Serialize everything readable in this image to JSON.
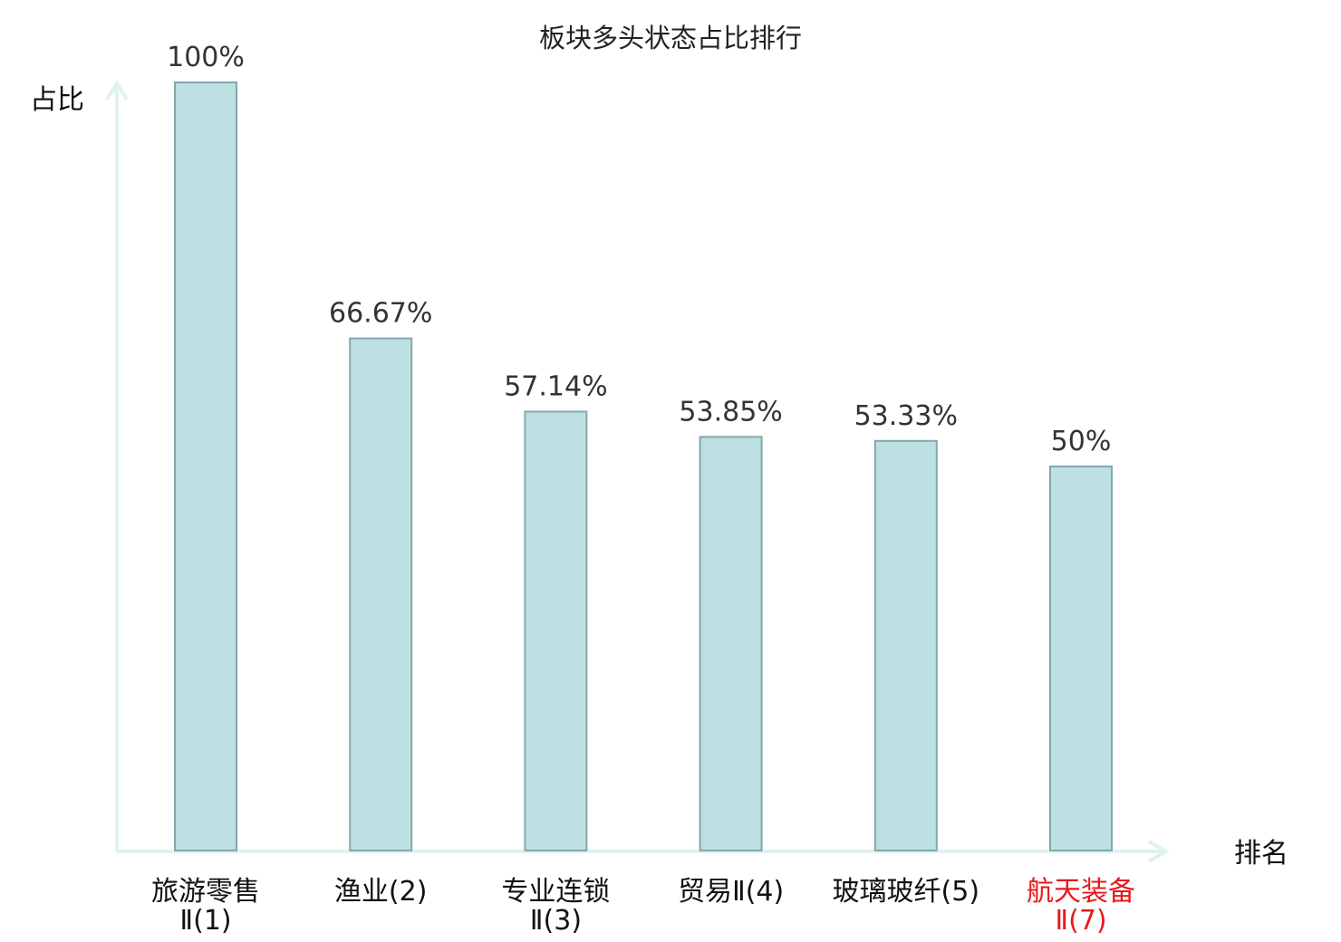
{
  "chart_data": {
    "type": "bar",
    "title": "板块多头状态占比排行",
    "ylabel": "占比",
    "xlabel": "排名",
    "categories": [
      [
        "旅游零售",
        "Ⅱ(1)"
      ],
      [
        "渔业(2)"
      ],
      [
        "专业连锁",
        "Ⅱ(3)"
      ],
      [
        "贸易Ⅱ(4)"
      ],
      [
        "玻璃玻纤(5)"
      ],
      [
        "航天装备",
        "Ⅱ(7)"
      ]
    ],
    "values": [
      100,
      66.67,
      57.14,
      53.85,
      53.33,
      50
    ],
    "value_labels": [
      "100%",
      "66.67%",
      "57.14%",
      "53.85%",
      "53.33%",
      "50%"
    ],
    "highlight_index": 5,
    "ylim": [
      0,
      100
    ],
    "grid": false,
    "colors": {
      "bar_fill": "#bde0e3",
      "bar_stroke": "#84a7ab",
      "axis": "#dff2ef",
      "label": "#111111",
      "highlight": "#e8191c"
    }
  }
}
